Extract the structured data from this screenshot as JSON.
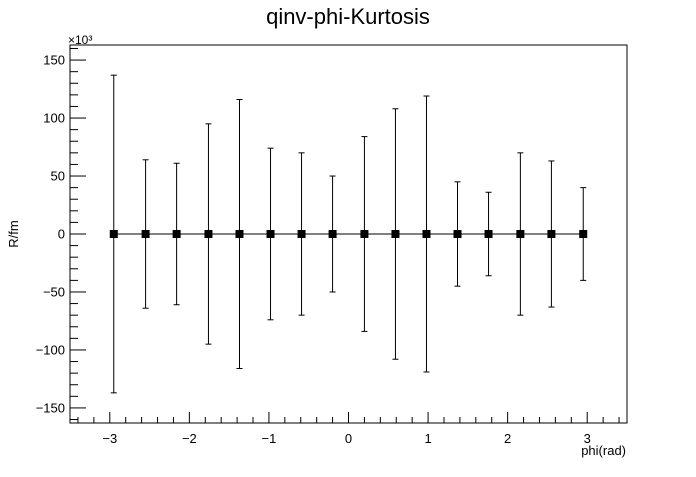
{
  "chart_data": {
    "type": "scatter",
    "title": "qinv-phi-Kurtosis",
    "xlabel": "phi(rad)",
    "ylabel": "R/fm",
    "y_exponent_label": "×10³",
    "xlim": [
      -3.5,
      3.5
    ],
    "ylim": [
      -163,
      163
    ],
    "x_ticks": [
      -3,
      -2,
      -1,
      0,
      1,
      2,
      3
    ],
    "x_tick_labels": [
      "−3",
      "−2",
      "−1",
      "0",
      "1",
      "2",
      "3"
    ],
    "y_ticks": [
      -150,
      -100,
      -50,
      0,
      50,
      100,
      150
    ],
    "y_tick_labels": [
      "−150",
      "−100",
      "−50",
      "0",
      "50",
      "100",
      "150"
    ],
    "grid": false,
    "series": [
      {
        "marker": "square",
        "color": "#000000",
        "x": [
          -2.95,
          -2.55,
          -2.16,
          -1.76,
          -1.37,
          -0.98,
          -0.59,
          -0.2,
          0.2,
          0.59,
          0.98,
          1.37,
          1.76,
          2.16,
          2.55,
          2.95
        ],
        "y": [
          0,
          0,
          0,
          0,
          0,
          0,
          0,
          0,
          0,
          0,
          0,
          0,
          0,
          0,
          0,
          0
        ],
        "yerr": [
          137,
          64,
          61,
          95,
          116,
          74,
          70,
          50,
          84,
          108,
          119,
          45,
          36,
          70,
          63,
          40
        ]
      }
    ]
  }
}
